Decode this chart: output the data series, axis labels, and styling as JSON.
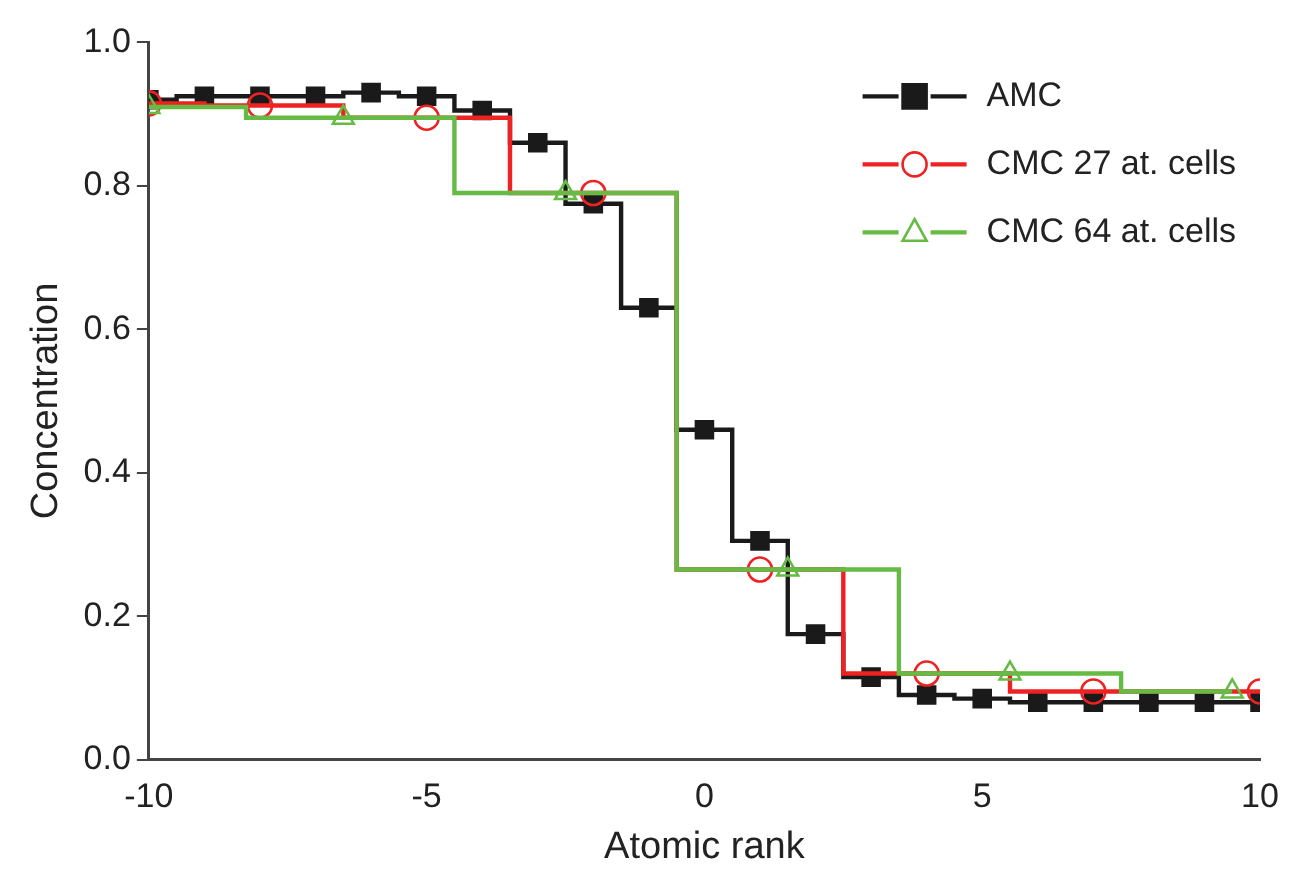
{
  "chart_data": {
    "type": "step",
    "xlabel": "Atomic rank",
    "ylabel": "Concentration",
    "xlim": [
      -10,
      10
    ],
    "xticks": [
      -10,
      -5,
      0,
      5,
      10
    ],
    "ylim": [
      0,
      1
    ],
    "yticks": [
      {
        "value": 0,
        "label": "0.0"
      },
      {
        "value": 0.2,
        "label": "0.2"
      },
      {
        "value": 0.4,
        "label": "0.4"
      },
      {
        "value": 0.6,
        "label": "0.6"
      },
      {
        "value": 0.8,
        "label": "0.8"
      },
      {
        "value": 1,
        "label": "1.0"
      }
    ],
    "grid": false,
    "legend": "top right",
    "series": [
      {
        "name": "AMC",
        "color": "#1a1a1a",
        "marker": "square",
        "x": [
          -10,
          -9,
          -8,
          -7,
          -6,
          -5,
          -4,
          -3,
          -2,
          -1,
          0,
          1,
          2,
          3,
          4,
          5,
          6,
          7,
          8,
          9,
          10
        ],
        "values": [
          0.92,
          0.925,
          0.925,
          0.925,
          0.93,
          0.925,
          0.905,
          0.86,
          0.775,
          0.63,
          0.46,
          0.305,
          0.175,
          0.115,
          0.09,
          0.085,
          0.08,
          0.08,
          0.08,
          0.08,
          0.08
        ]
      },
      {
        "name": "CMC 27 at. cells",
        "color": "#ee2222",
        "marker": "circle",
        "x": [
          -10,
          -8,
          -5,
          -2,
          1,
          4,
          7,
          10
        ],
        "values": [
          0.915,
          0.912,
          0.895,
          0.79,
          0.265,
          0.12,
          0.095,
          0.095
        ]
      },
      {
        "name": "CMC 64 at. cells",
        "color": "#66bb44",
        "marker": "triangle",
        "x": [
          -10,
          -6.5,
          -2.5,
          1.5,
          5.5,
          9.5
        ],
        "values": [
          0.91,
          0.895,
          0.79,
          0.265,
          0.12,
          0.095
        ]
      }
    ]
  }
}
